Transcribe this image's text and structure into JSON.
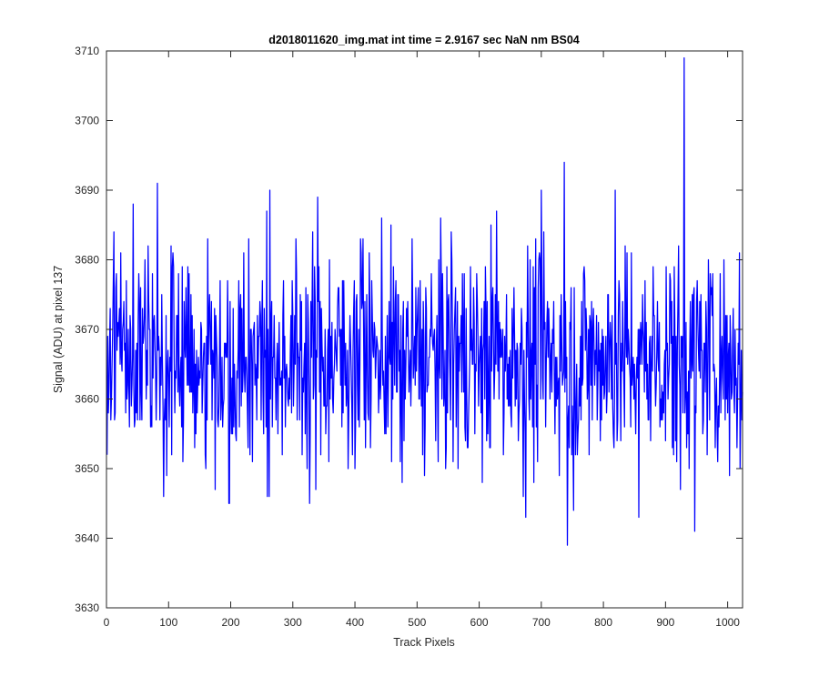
{
  "chart_data": {
    "type": "line",
    "title": "d2018011620_img.mat int time = 2.9167 sec  NaN nm BS04",
    "xlabel": "Track Pixels",
    "ylabel": "Signal (ADU) at pixel 137",
    "xlim": [
      0,
      1024
    ],
    "ylim": [
      3630,
      3710
    ],
    "xticks": [
      0,
      100,
      200,
      300,
      400,
      500,
      600,
      700,
      800,
      900,
      1000
    ],
    "yticks": [
      3630,
      3640,
      3650,
      3660,
      3670,
      3680,
      3690,
      3700,
      3710
    ],
    "grid": false,
    "box": true,
    "colors": {
      "line": "#0000ff",
      "axes": "#262626",
      "background": "#ffffff"
    },
    "series": [
      {
        "x_start": 1,
        "x_step": 1,
        "count": 1024,
        "mean": 3666,
        "noise_sd": 7.6,
        "min": 3639,
        "max": 3709,
        "notable_points": [
          {
            "x": 1,
            "y": 3652
          },
          {
            "x": 12,
            "y": 3684
          },
          {
            "x": 43,
            "y": 3688
          },
          {
            "x": 82,
            "y": 3691
          },
          {
            "x": 97,
            "y": 3649
          },
          {
            "x": 163,
            "y": 3683
          },
          {
            "x": 175,
            "y": 3647
          },
          {
            "x": 197,
            "y": 3645
          },
          {
            "x": 258,
            "y": 3687
          },
          {
            "x": 259,
            "y": 3646
          },
          {
            "x": 262,
            "y": 3646
          },
          {
            "x": 327,
            "y": 3645
          },
          {
            "x": 340,
            "y": 3689
          },
          {
            "x": 409,
            "y": 3683
          },
          {
            "x": 413,
            "y": 3683
          },
          {
            "x": 476,
            "y": 3648
          },
          {
            "x": 555,
            "y": 3684
          },
          {
            "x": 628,
            "y": 3687
          },
          {
            "x": 675,
            "y": 3643
          },
          {
            "x": 700,
            "y": 3690
          },
          {
            "x": 737,
            "y": 3694
          },
          {
            "x": 742,
            "y": 3639
          },
          {
            "x": 752,
            "y": 3644
          },
          {
            "x": 819,
            "y": 3690
          },
          {
            "x": 857,
            "y": 3643
          },
          {
            "x": 924,
            "y": 3647
          },
          {
            "x": 930,
            "y": 3709
          },
          {
            "x": 947,
            "y": 3641
          },
          {
            "x": 1003,
            "y": 3649
          },
          {
            "x": 1020,
            "y": 3650
          }
        ]
      }
    ]
  }
}
